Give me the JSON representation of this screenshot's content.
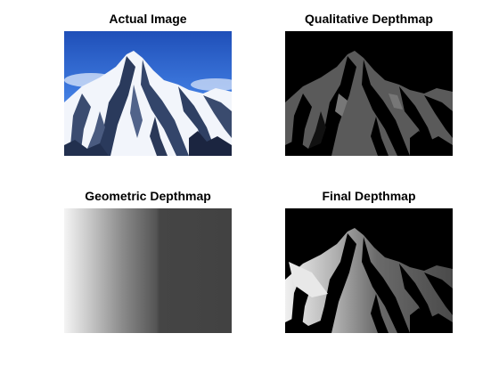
{
  "figure": {
    "panels": [
      {
        "title": "Actual Image"
      },
      {
        "title": "Qualitative Depthmap"
      },
      {
        "title": "Geometric Depthmap"
      },
      {
        "title": "Final Depthmap"
      }
    ]
  }
}
